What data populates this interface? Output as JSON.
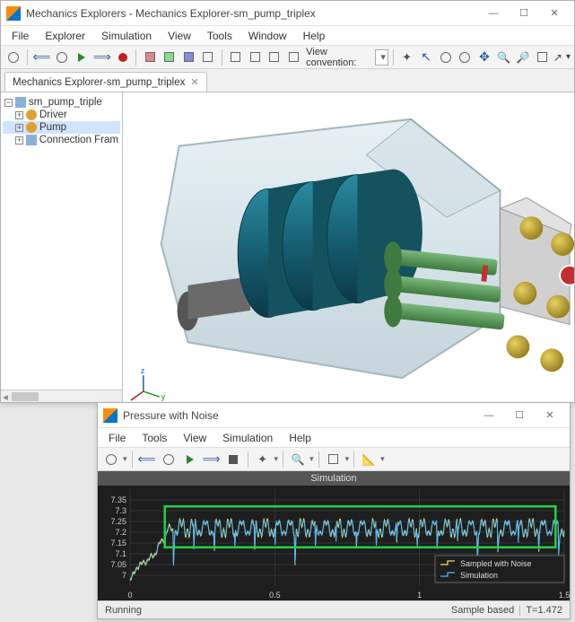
{
  "win1": {
    "title": "Mechanics Explorers - Mechanics Explorer-sm_pump_triplex",
    "menus": [
      "File",
      "Explorer",
      "Simulation",
      "View",
      "Tools",
      "Window",
      "Help"
    ],
    "view_label": "View convention:",
    "tab_label": "Mechanics Explorer-sm_pump_triplex",
    "tree": {
      "root": "sm_pump_triple",
      "items": [
        {
          "label": "Driver",
          "sel": false
        },
        {
          "label": "Pump",
          "sel": true
        },
        {
          "label": "Connection Fram",
          "sel": false
        }
      ]
    }
  },
  "win2": {
    "title": "Pressure with Noise",
    "menus": [
      "File",
      "Tools",
      "View",
      "Simulation",
      "Help"
    ],
    "banner": "Simulation",
    "status_left": "Running",
    "status_right_label": "Sample based",
    "status_right_time": "T=1.472",
    "legend": [
      {
        "label": "Sampled with Noise",
        "color": "#e6e25a"
      },
      {
        "label": "Simulation",
        "color": "#4fb6ff"
      }
    ],
    "chart": {
      "bg": "#1e1e1e",
      "grid": "#4a4a4a",
      "highlight_box": "#22d04a",
      "xlim": [
        0,
        1.5
      ],
      "xticks": [
        0,
        0.5,
        1,
        1.5
      ],
      "ylim": [
        6.95,
        7.4
      ],
      "yticks": [
        7,
        7.05,
        7.1,
        7.15,
        7.2,
        7.25,
        7.3,
        7.35
      ],
      "series_sim_color": "#4fb6ff",
      "series_samp_color": "#e6e25a",
      "ramp_end_x": 0.15,
      "osc_center": 7.22,
      "osc_amp": 0.06,
      "osc_freq": 24,
      "dip_interval": 0.07,
      "dip_depth": 0.14
    }
  },
  "model3d": {
    "housing_fill": "#b9cfd9",
    "housing_stroke": "#6a8794",
    "crank_fill": "#1b6a82",
    "crank_shade": "#14525f",
    "piston_fill": "#5a9a5a",
    "piston_shade": "#3f7a3f",
    "shaft_fill": "#6a6a6a",
    "ball_fill": "#b8a030",
    "ball_hi": "#e8d060",
    "red_ring": "#c03030",
    "distributor_fill": "#cfcfcf"
  }
}
